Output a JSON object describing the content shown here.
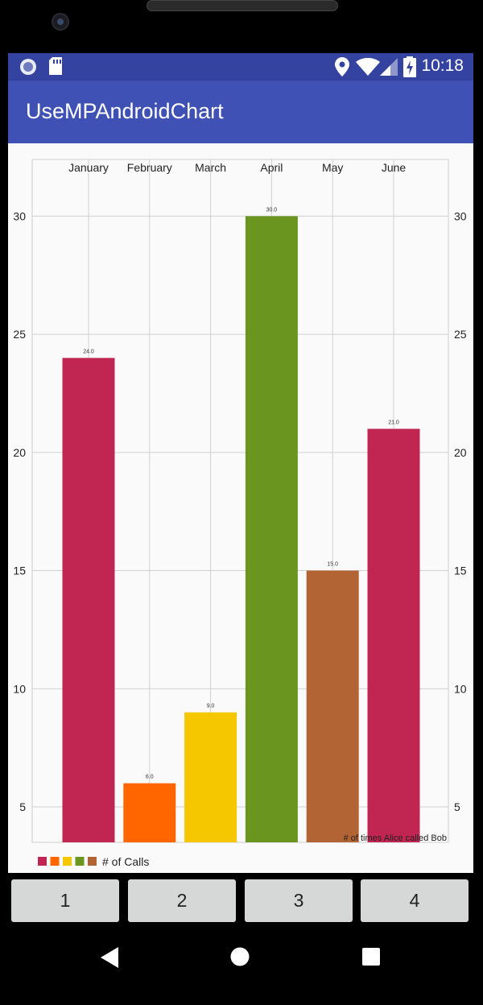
{
  "status_bar": {
    "time": "10:18"
  },
  "app_bar": {
    "title": "UseMPAndroidChart"
  },
  "chart_data": {
    "type": "bar",
    "categories": [
      "January",
      "February",
      "March",
      "April",
      "May",
      "June"
    ],
    "values": [
      24.0,
      6.0,
      9.0,
      30.0,
      15.0,
      21.0
    ],
    "value_labels": [
      "24.0",
      "6.0",
      "9.0",
      "30.0",
      "15.0",
      "21.0"
    ],
    "bar_colors": [
      "#c12552",
      "#ff6600",
      "#f5c700",
      "#6a961f",
      "#b36435",
      "#c12552"
    ],
    "ylim": [
      3.5,
      32.4
    ],
    "yticks": [
      5,
      10,
      15,
      20,
      25,
      30
    ],
    "x_axis_position": "top",
    "y_axis": "both-sides",
    "grid": true,
    "description": "# of times Alice called Bob",
    "legend": {
      "label": "# of Calls",
      "colors": [
        "#c12552",
        "#ff6600",
        "#f5c700",
        "#6a961f",
        "#b36435"
      ],
      "position": "bottom-left"
    }
  },
  "buttons": [
    {
      "label": "1"
    },
    {
      "label": "2"
    },
    {
      "label": "3"
    },
    {
      "label": "4"
    }
  ]
}
